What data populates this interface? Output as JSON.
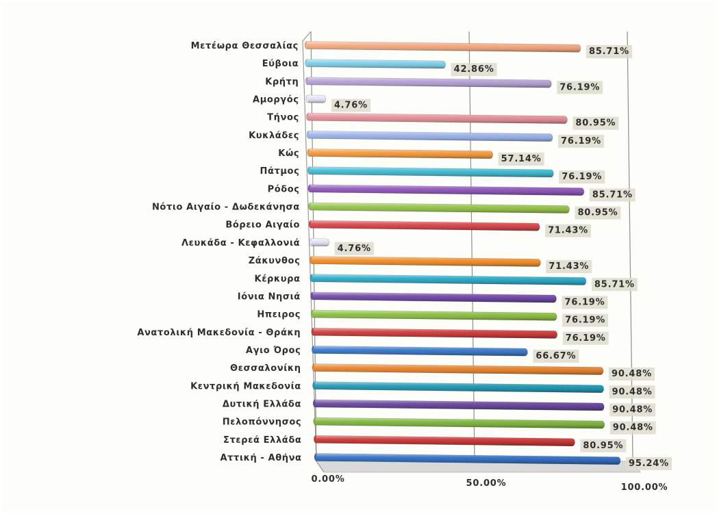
{
  "chart_data": {
    "type": "bar",
    "orientation": "horizontal",
    "perspective": "3d",
    "categories": [
      "Μετέωρα  Θεσσαλίας",
      "Εύβοια",
      "Κρήτη",
      "Αμοργός",
      "Τήνος",
      "Κυκλάδες",
      "Κώς",
      "Πάτμος",
      "Ρόδος",
      "Νότιο Αιγαίο - Δωδεκάνησα",
      "Βόρειο Αιγαίο",
      "Λευκάδα - Κεφαλλονιά",
      "Ζάκυνθος",
      "Κέρκυρα",
      "Ιόνια Νησιά",
      "Ηπειρος",
      "Ανατολική Μακεδονία - Θράκη",
      "Αγιο Όρος",
      "Θεσσαλονίκη",
      "Κεντρική Μακεδονία",
      "Δυτική Ελλάδα",
      "Πελοπόννησος",
      "Στερεά Ελλάδα",
      "Αττική - Αθήνα"
    ],
    "values": [
      85.71,
      42.86,
      76.19,
      4.76,
      80.95,
      76.19,
      57.14,
      76.19,
      85.71,
      80.95,
      71.43,
      4.76,
      71.43,
      85.71,
      76.19,
      76.19,
      76.19,
      66.67,
      90.48,
      90.48,
      90.48,
      90.48,
      80.95,
      95.24
    ],
    "value_labels": [
      "85.71%",
      "42.86%",
      "76.19%",
      "4.76%",
      "80.95%",
      "76.19%",
      "57.14%",
      "76.19%",
      "85.71%",
      "80.95%",
      "71.43%",
      "4.76%",
      "71.43%",
      "85.71%",
      "76.19%",
      "76.19%",
      "76.19%",
      "66.67%",
      "90.48%",
      "90.48%",
      "90.48%",
      "90.48%",
      "80.95%",
      "95.24%"
    ],
    "colors": [
      "#f4a97f",
      "#7fd0ea",
      "#b6a2d6",
      "#e8e4f4",
      "#e48f98",
      "#9cb4ea",
      "#f59a3e",
      "#3fbad2",
      "#8e56ba",
      "#95c44a",
      "#d8454a",
      "#e8e4f4",
      "#f28e2a",
      "#2aa8c6",
      "#7048a6",
      "#8bc042",
      "#cc3a3a",
      "#3a78c8",
      "#e7822e",
      "#2096b2",
      "#66449a",
      "#7eb43c",
      "#c83434",
      "#2f6cc0"
    ],
    "x_tick_labels": [
      "0.00%",
      "50.00%",
      "100.00%"
    ],
    "xlim": [
      0,
      100
    ],
    "grid": true,
    "legend": "none",
    "title": "",
    "xlabel": "",
    "ylabel": ""
  }
}
